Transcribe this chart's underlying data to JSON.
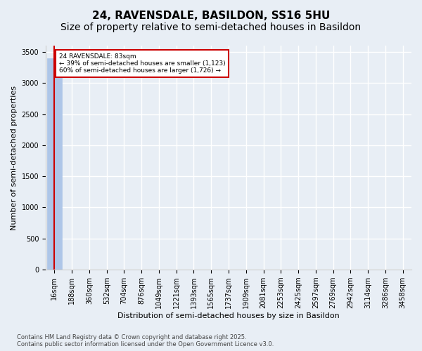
{
  "title1": "24, RAVENSDALE, BASILDON, SS16 5HU",
  "title2": "Size of property relative to semi-detached houses in Basildon",
  "xlabel": "Distribution of semi-detached houses by size in Basildon",
  "ylabel": "Number of semi-detached properties",
  "bin_labels": [
    "16sqm",
    "188sqm",
    "360sqm",
    "532sqm",
    "704sqm",
    "876sqm",
    "1049sqm",
    "1221sqm",
    "1393sqm",
    "1565sqm",
    "1737sqm",
    "1909sqm",
    "2081sqm",
    "2253sqm",
    "2425sqm",
    "2597sqm",
    "2769sqm",
    "2942sqm",
    "3114sqm",
    "3286sqm",
    "3458sqm"
  ],
  "bar_heights": [
    3400,
    3,
    1,
    1,
    0,
    0,
    0,
    0,
    0,
    0,
    0,
    0,
    0,
    0,
    0,
    0,
    0,
    0,
    0,
    0,
    0
  ],
  "bar_color": "#aec6e8",
  "bar_edge_color": "#aec6e8",
  "ylim": [
    0,
    3600
  ],
  "yticks": [
    0,
    500,
    1000,
    1500,
    2000,
    2500,
    3000,
    3500
  ],
  "property_bin_index": 0,
  "annotation_line": "24 RAVENSDALE: 83sqm",
  "annotation_smaller": "← 39% of semi-detached houses are smaller (1,123)",
  "annotation_larger": "60% of semi-detached houses are larger (1,726) →",
  "vline_color": "#cc0000",
  "annotation_box_color": "#cc0000",
  "footer1": "Contains HM Land Registry data © Crown copyright and database right 2025.",
  "footer2": "Contains public sector information licensed under the Open Government Licence v3.0.",
  "background_color": "#e8eef5",
  "grid_color": "#ffffff",
  "title_fontsize": 11,
  "subtitle_fontsize": 10,
  "axis_label_fontsize": 8,
  "tick_fontsize": 7,
  "footer_fontsize": 6
}
